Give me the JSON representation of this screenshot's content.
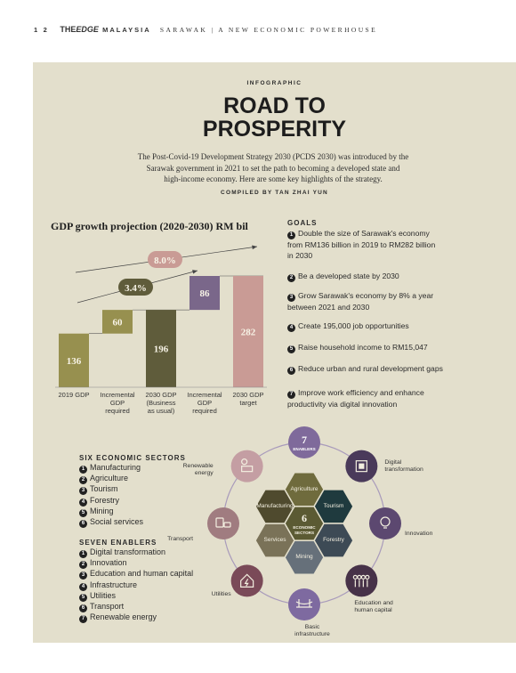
{
  "header": {
    "page_number": "1 2",
    "brand_the": "THE",
    "brand_edge": "EDGE",
    "brand_country": "MALAYSIA",
    "section": "SARAWAK | A NEW ECONOMIC POWERHOUSE"
  },
  "article": {
    "kicker": "INFOGRAPHIC",
    "title_line1": "ROAD TO",
    "title_line2": "PROSPERITY",
    "intro_line1": "The Post-Covid-19 Development Strategy 2030 (PCDS 2030) was introduced by the",
    "intro_line2": "Sarawak government in 2021 to set the path to becoming a developed state and",
    "intro_line3": "high-income economy. Here are some key highlights of the strategy.",
    "compiled_by": "COMPILED BY TAN ZHAI YUN"
  },
  "chart_data": {
    "type": "bar",
    "title": "GDP growth projection (2020-2030) RM bil",
    "categories": [
      "2019 GDP",
      "Incremental GDP required",
      "2030 GDP (Business as usual)",
      "Incremental GDP required",
      "2030 GDP target"
    ],
    "category_lines": [
      [
        "2019 GDP"
      ],
      [
        "Incremental",
        "GDP",
        "required"
      ],
      [
        "2030 GDP",
        "(Business",
        "as usual)"
      ],
      [
        "Incremental",
        "GDP",
        "required"
      ],
      [
        "2030 GDP",
        "target"
      ]
    ],
    "bars": [
      {
        "label": "136",
        "value": 136,
        "base": 0,
        "color": "#97904f"
      },
      {
        "label": "60",
        "value": 60,
        "base": 136,
        "color": "#97904f"
      },
      {
        "label": "196",
        "value": 196,
        "base": 0,
        "color": "#5f5c3b"
      },
      {
        "label": "86",
        "value": 86,
        "base": 196,
        "color": "#7a678a"
      },
      {
        "label": "282",
        "value": 282,
        "base": 0,
        "color": "#c99b95"
      }
    ],
    "growth_labels": [
      {
        "label": "3.4%",
        "color": "#5f5c3b"
      },
      {
        "label": "8.0%",
        "color": "#c99b95"
      }
    ],
    "ylim": [
      0,
      282
    ]
  },
  "goals": {
    "title": "GOALS",
    "items": [
      {
        "n": "1",
        "line1": "Double the size of Sarawak's economy",
        "line2": "from RM136 billion in 2019 to RM282 billion",
        "line3": "in 2030"
      },
      {
        "n": "2",
        "line1": "Be a developed state by 2030",
        "line2": "",
        "line3": ""
      },
      {
        "n": "3",
        "line1": "Grow Sarawak's economy by 8% a year",
        "line2": "between 2021 and 2030",
        "line3": ""
      },
      {
        "n": "4",
        "line1": "Create 195,000 job opportunities",
        "line2": "",
        "line3": ""
      },
      {
        "n": "5",
        "line1": "Raise household income to RM15,047",
        "line2": "",
        "line3": ""
      },
      {
        "n": "6",
        "line1": "Reduce urban and rural development gaps",
        "line2": "",
        "line3": ""
      },
      {
        "n": "7",
        "line1": "Improve work efficiency and enhance",
        "line2": "productivity via digital innovation",
        "line3": ""
      }
    ]
  },
  "sectors": {
    "title": "SIX ECONOMIC SECTORS",
    "items": [
      "Manufacturing",
      "Agriculture",
      "Tourism",
      "Forestry",
      "Mining",
      "Social services"
    ]
  },
  "enablers": {
    "title": "SEVEN ENABLERS",
    "items": [
      "Digital transformation",
      "Innovation",
      "Education and human capital",
      "Infrastructure",
      "Utilities",
      "Transport",
      "Renewable energy"
    ]
  },
  "diagram": {
    "center_number": "6",
    "center_line1": "ECONOMIC",
    "center_line2": "SECTORS",
    "top_number": "7",
    "top_label": "ENABLERS",
    "hexes": [
      {
        "label": "Agriculture",
        "color": "#6f6b3d"
      },
      {
        "label": "Tourism",
        "color": "#1f3a3e"
      },
      {
        "label": "Forestry",
        "color": "#3d4a55"
      },
      {
        "label": "Mining",
        "color": "#66707a"
      },
      {
        "label": "Services",
        "color": "#7a7258"
      },
      {
        "label": "Manufacturing",
        "color": "#4f4a2e"
      }
    ],
    "center_color": "#5b5a33",
    "ring": [
      {
        "name": "digital",
        "label1": "Digital",
        "label2": "transformation",
        "color": "#4a3a5a",
        "icon": "chip-icon"
      },
      {
        "name": "innovation",
        "label1": "Innovation",
        "label2": "",
        "color": "#5c4870",
        "icon": "lightbulb-icon"
      },
      {
        "name": "education",
        "label1": "Education and",
        "label2": "human capital",
        "color": "#473248",
        "icon": "people-icon"
      },
      {
        "name": "infrastructure",
        "label1": "Basic",
        "label2": "infrastructure",
        "color": "#7e6aa0",
        "icon": "bridge-icon"
      },
      {
        "name": "utilities",
        "label1": "Utilities",
        "label2": "",
        "color": "#7a4a58",
        "icon": "house-bolt-icon"
      },
      {
        "name": "transport",
        "label1": "Transport",
        "label2": "",
        "color": "#a07c80",
        "icon": "vehicles-icon"
      },
      {
        "name": "renewable",
        "label1": "Renewable",
        "label2": "energy",
        "color": "#c49ea3",
        "icon": "solar-panel-icon"
      }
    ],
    "top_color": "#7f6a9b"
  }
}
